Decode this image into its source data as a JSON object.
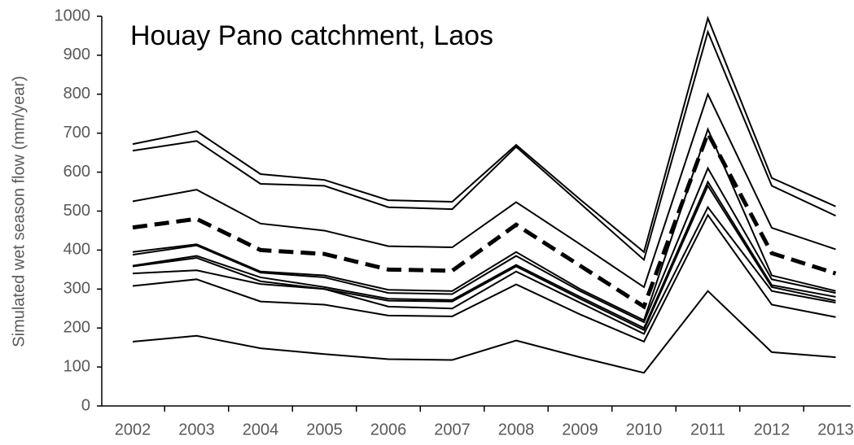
{
  "chart_data": {
    "type": "line",
    "title": "Houay Pano catchment, Laos",
    "y_label": "Simulated wet season flow (mm/year)",
    "categories": [
      "2002",
      "2003",
      "2004",
      "2005",
      "2006",
      "2007",
      "2008",
      "2009",
      "2010",
      "2011",
      "2012",
      "2013"
    ],
    "ylim": [
      0,
      1000
    ],
    "yticks": [
      0,
      100,
      200,
      300,
      400,
      500,
      600,
      700,
      800,
      900,
      1000
    ],
    "series": [
      {
        "color": "#000000",
        "style": "solid",
        "values": [
          672,
          705,
          595,
          580,
          528,
          524,
          670,
          530,
          395,
          995,
          585,
          512
        ]
      },
      {
        "color": "#000000",
        "style": "solid",
        "values": [
          655,
          680,
          570,
          565,
          510,
          505,
          665,
          520,
          375,
          960,
          565,
          488
        ]
      },
      {
        "color": "#000000",
        "style": "solid",
        "values": [
          525,
          555,
          468,
          450,
          410,
          407,
          523,
          415,
          305,
          800,
          457,
          402
        ]
      },
      {
        "color": "#000000",
        "style": "solid",
        "values": [
          395,
          415,
          345,
          335,
          298,
          295,
          395,
          300,
          220,
          710,
          335,
          295
        ]
      },
      {
        "color": "#000000",
        "style": "solid",
        "values": [
          388,
          412,
          342,
          330,
          290,
          287,
          385,
          295,
          215,
          610,
          325,
          290
        ]
      },
      {
        "color": "#000000",
        "style": "solid",
        "values": [
          360,
          385,
          330,
          305,
          275,
          272,
          362,
          280,
          200,
          575,
          310,
          280
        ]
      },
      {
        "color": "#000000",
        "style": "solid",
        "values": [
          358,
          380,
          320,
          300,
          270,
          268,
          358,
          275,
          195,
          565,
          305,
          270
        ]
      },
      {
        "color": "#000000",
        "style": "solid",
        "values": [
          340,
          348,
          313,
          300,
          255,
          250,
          345,
          265,
          185,
          510,
          295,
          265
        ]
      },
      {
        "color": "#000000",
        "style": "solid",
        "values": [
          308,
          325,
          268,
          260,
          232,
          230,
          312,
          235,
          165,
          490,
          260,
          228
        ]
      },
      {
        "color": "#000000",
        "style": "solid",
        "values": [
          165,
          180,
          148,
          133,
          120,
          118,
          168,
          125,
          85,
          295,
          138,
          125
        ]
      },
      {
        "color": "#000000",
        "style": "dashed",
        "values": [
          458,
          480,
          400,
          390,
          350,
          347,
          465,
          360,
          255,
          700,
          392,
          340
        ]
      }
    ]
  }
}
